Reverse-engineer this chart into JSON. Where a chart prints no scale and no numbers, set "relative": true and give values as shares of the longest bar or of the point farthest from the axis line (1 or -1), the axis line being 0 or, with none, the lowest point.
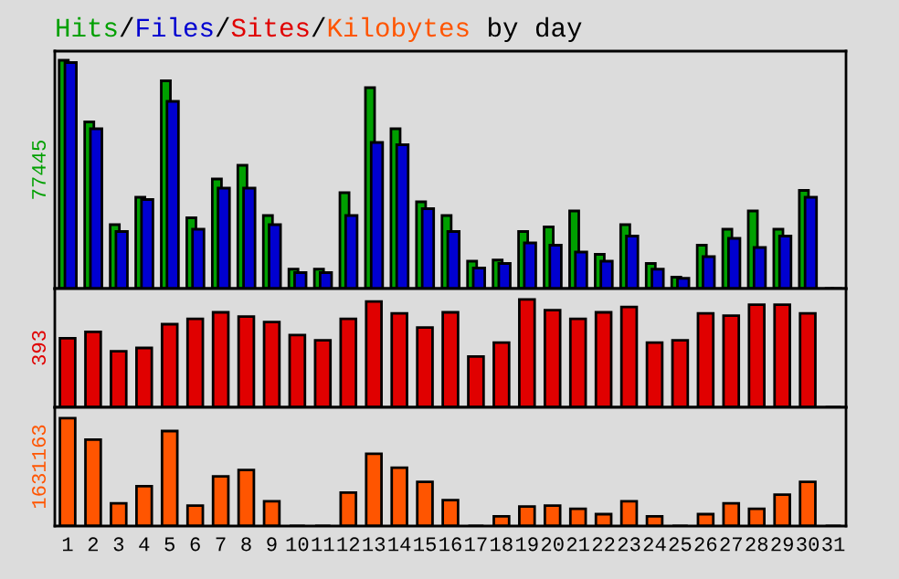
{
  "chart_data": [
    {
      "type": "bar",
      "title": "Hits/Files/Sites/Kilobytes by day",
      "ylabel": "77445",
      "relative": true,
      "tick_labels": false,
      "categories": [
        "1",
        "2",
        "3",
        "4",
        "5",
        "6",
        "7",
        "8",
        "9",
        "10",
        "11",
        "12",
        "13",
        "14",
        "15",
        "16",
        "17",
        "18",
        "19",
        "20",
        "21",
        "22",
        "23",
        "24",
        "25",
        "26",
        "27",
        "28",
        "29",
        "30",
        "31"
      ],
      "series": [
        {
          "color": "#00a000",
          "values": [
            1.0,
            0.73,
            0.28,
            0.4,
            0.91,
            0.31,
            0.48,
            0.54,
            0.32,
            0.085,
            0.085,
            0.42,
            0.88,
            0.7,
            0.38,
            0.32,
            0.12,
            0.125,
            0.25,
            0.27,
            0.34,
            0.15,
            0.28,
            0.11,
            0.05,
            0.19,
            0.26,
            0.34,
            0.26,
            0.43,
            0
          ]
        },
        {
          "color": "#0000d0",
          "values": [
            0.99,
            0.7,
            0.25,
            0.39,
            0.82,
            0.26,
            0.44,
            0.44,
            0.28,
            0.07,
            0.07,
            0.32,
            0.64,
            0.63,
            0.35,
            0.25,
            0.09,
            0.11,
            0.2,
            0.19,
            0.16,
            0.12,
            0.23,
            0.085,
            0.045,
            0.14,
            0.22,
            0.18,
            0.23,
            0.4,
            0
          ]
        }
      ]
    },
    {
      "type": "bar",
      "ylabel": "393",
      "relative": true,
      "tick_labels": false,
      "categories": [
        "1",
        "2",
        "3",
        "4",
        "5",
        "6",
        "7",
        "8",
        "9",
        "10",
        "11",
        "12",
        "13",
        "14",
        "15",
        "16",
        "17",
        "18",
        "19",
        "20",
        "21",
        "22",
        "23",
        "24",
        "25",
        "26",
        "27",
        "28",
        "29",
        "30",
        "31"
      ],
      "series": [
        {
          "color": "#e00000",
          "values": [
            0.64,
            0.7,
            0.52,
            0.55,
            0.77,
            0.82,
            0.88,
            0.84,
            0.79,
            0.67,
            0.62,
            0.82,
            0.98,
            0.87,
            0.74,
            0.88,
            0.47,
            0.6,
            1.0,
            0.9,
            0.82,
            0.88,
            0.93,
            0.6,
            0.62,
            0.87,
            0.85,
            0.95,
            0.95,
            0.87,
            0
          ]
        }
      ]
    },
    {
      "type": "bar",
      "ylabel": "1631163",
      "relative": true,
      "tick_labels": "x",
      "categories": [
        "1",
        "2",
        "3",
        "4",
        "5",
        "6",
        "7",
        "8",
        "9",
        "10",
        "11",
        "12",
        "13",
        "14",
        "15",
        "16",
        "17",
        "18",
        "19",
        "20",
        "21",
        "22",
        "23",
        "24",
        "25",
        "26",
        "27",
        "28",
        "29",
        "30",
        "31"
      ],
      "series": [
        {
          "color": "#ff5500",
          "values": [
            1.0,
            0.8,
            0.21,
            0.37,
            0.88,
            0.19,
            0.46,
            0.52,
            0.23,
            0,
            0,
            0.31,
            0.67,
            0.54,
            0.41,
            0.24,
            0,
            0.09,
            0.18,
            0.19,
            0.16,
            0.11,
            0.23,
            0.09,
            0,
            0.11,
            0.21,
            0.16,
            0.29,
            0.41,
            0
          ]
        }
      ]
    }
  ]
}
